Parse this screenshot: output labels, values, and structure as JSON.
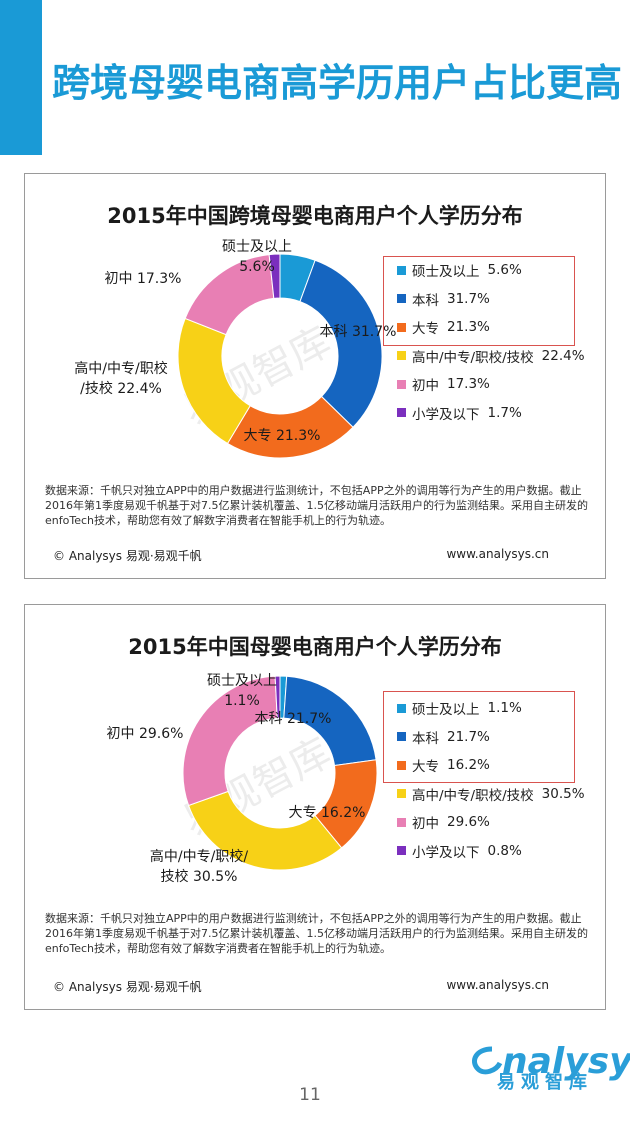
{
  "page": {
    "title": "跨境母婴电商高学历用户占比更高",
    "page_number": "11",
    "brand": {
      "wordmark": "nalysys",
      "chinese": "易观智库"
    },
    "colors": {
      "accent": "#1a9ad6"
    }
  },
  "panels": [
    {
      "watermark": "易观智库",
      "source_text": "数据来源：千帆只对独立APP中的用户数据进行监测统计，不包括APP之外的调用等行为产生的用户数据。截止2016年第1季度易观千帆基于对7.5亿累计装机覆盖、1.5亿移动端月活跃用户的行为监测结果。采用自主研发的enfoTech技术，帮助您有效了解数字消费者在智能手机上的行为轨迹。",
      "footer_left": "© Analysys 易观·易观千帆",
      "footer_right": "www.analysys.cn",
      "slice_labels": [
        {
          "line1": "硕士及以上",
          "line2": "5.6%"
        },
        {
          "line1": "本科  31.7%",
          "line2": ""
        },
        {
          "line1": "大专  21.3%",
          "line2": ""
        },
        {
          "line1": "高中/中专/职校",
          "line2": "/技校  22.4%"
        },
        {
          "line1": "初中  17.3%",
          "line2": ""
        },
        {
          "line1": "",
          "line2": ""
        }
      ]
    },
    {
      "watermark": "易观智库",
      "source_text": "数据来源：千帆只对独立APP中的用户数据进行监测统计，不包括APP之外的调用等行为产生的用户数据。截止2016年第1季度易观千帆基于对7.5亿累计装机覆盖、1.5亿移动端月活跃用户的行为监测结果。采用自主研发的enfoTech技术，帮助您有效了解数字消费者在智能手机上的行为轨迹。",
      "footer_left": "© Analysys 易观·易观千帆",
      "footer_right": "www.analysys.cn",
      "slice_labels": [
        {
          "line1": "硕士及以上",
          "line2": "1.1%"
        },
        {
          "line1": "本科  21.7%",
          "line2": ""
        },
        {
          "line1": "大专  16.2%",
          "line2": ""
        },
        {
          "line1": "高中/中专/职校/",
          "line2": "技校  30.5%"
        },
        {
          "line1": "初中  29.6%",
          "line2": ""
        },
        {
          "line1": "",
          "line2": ""
        }
      ]
    }
  ],
  "chart_data": [
    {
      "type": "pie",
      "title": "2015年中国跨境母婴电商用户个人学历分布",
      "categories": [
        "硕士及以上",
        "本科",
        "大专",
        "高中/中专/职校/技校",
        "初中",
        "小学及以下"
      ],
      "values": [
        5.6,
        31.7,
        21.3,
        22.4,
        17.3,
        1.7
      ],
      "value_labels": [
        "5.6%",
        "31.7%",
        "21.3%",
        "22.4%",
        "17.3%",
        "1.7%"
      ],
      "colors": [
        "#1a9ad6",
        "#1565c0",
        "#f26b1d",
        "#f7d117",
        "#e87fb4",
        "#7b2fbe"
      ],
      "legend_placement": "right"
    },
    {
      "type": "pie",
      "title": "2015年中国母婴电商用户个人学历分布",
      "categories": [
        "硕士及以上",
        "本科",
        "大专",
        "高中/中专/职校/技校",
        "初中",
        "小学及以下"
      ],
      "values": [
        1.1,
        21.7,
        16.2,
        30.5,
        29.6,
        0.8
      ],
      "value_labels": [
        "1.1%",
        "21.7%",
        "16.2%",
        "30.5%",
        "29.6%",
        "0.8%"
      ],
      "colors": [
        "#1a9ad6",
        "#1565c0",
        "#f26b1d",
        "#f7d117",
        "#e87fb4",
        "#7b2fbe"
      ],
      "legend_placement": "right"
    }
  ]
}
